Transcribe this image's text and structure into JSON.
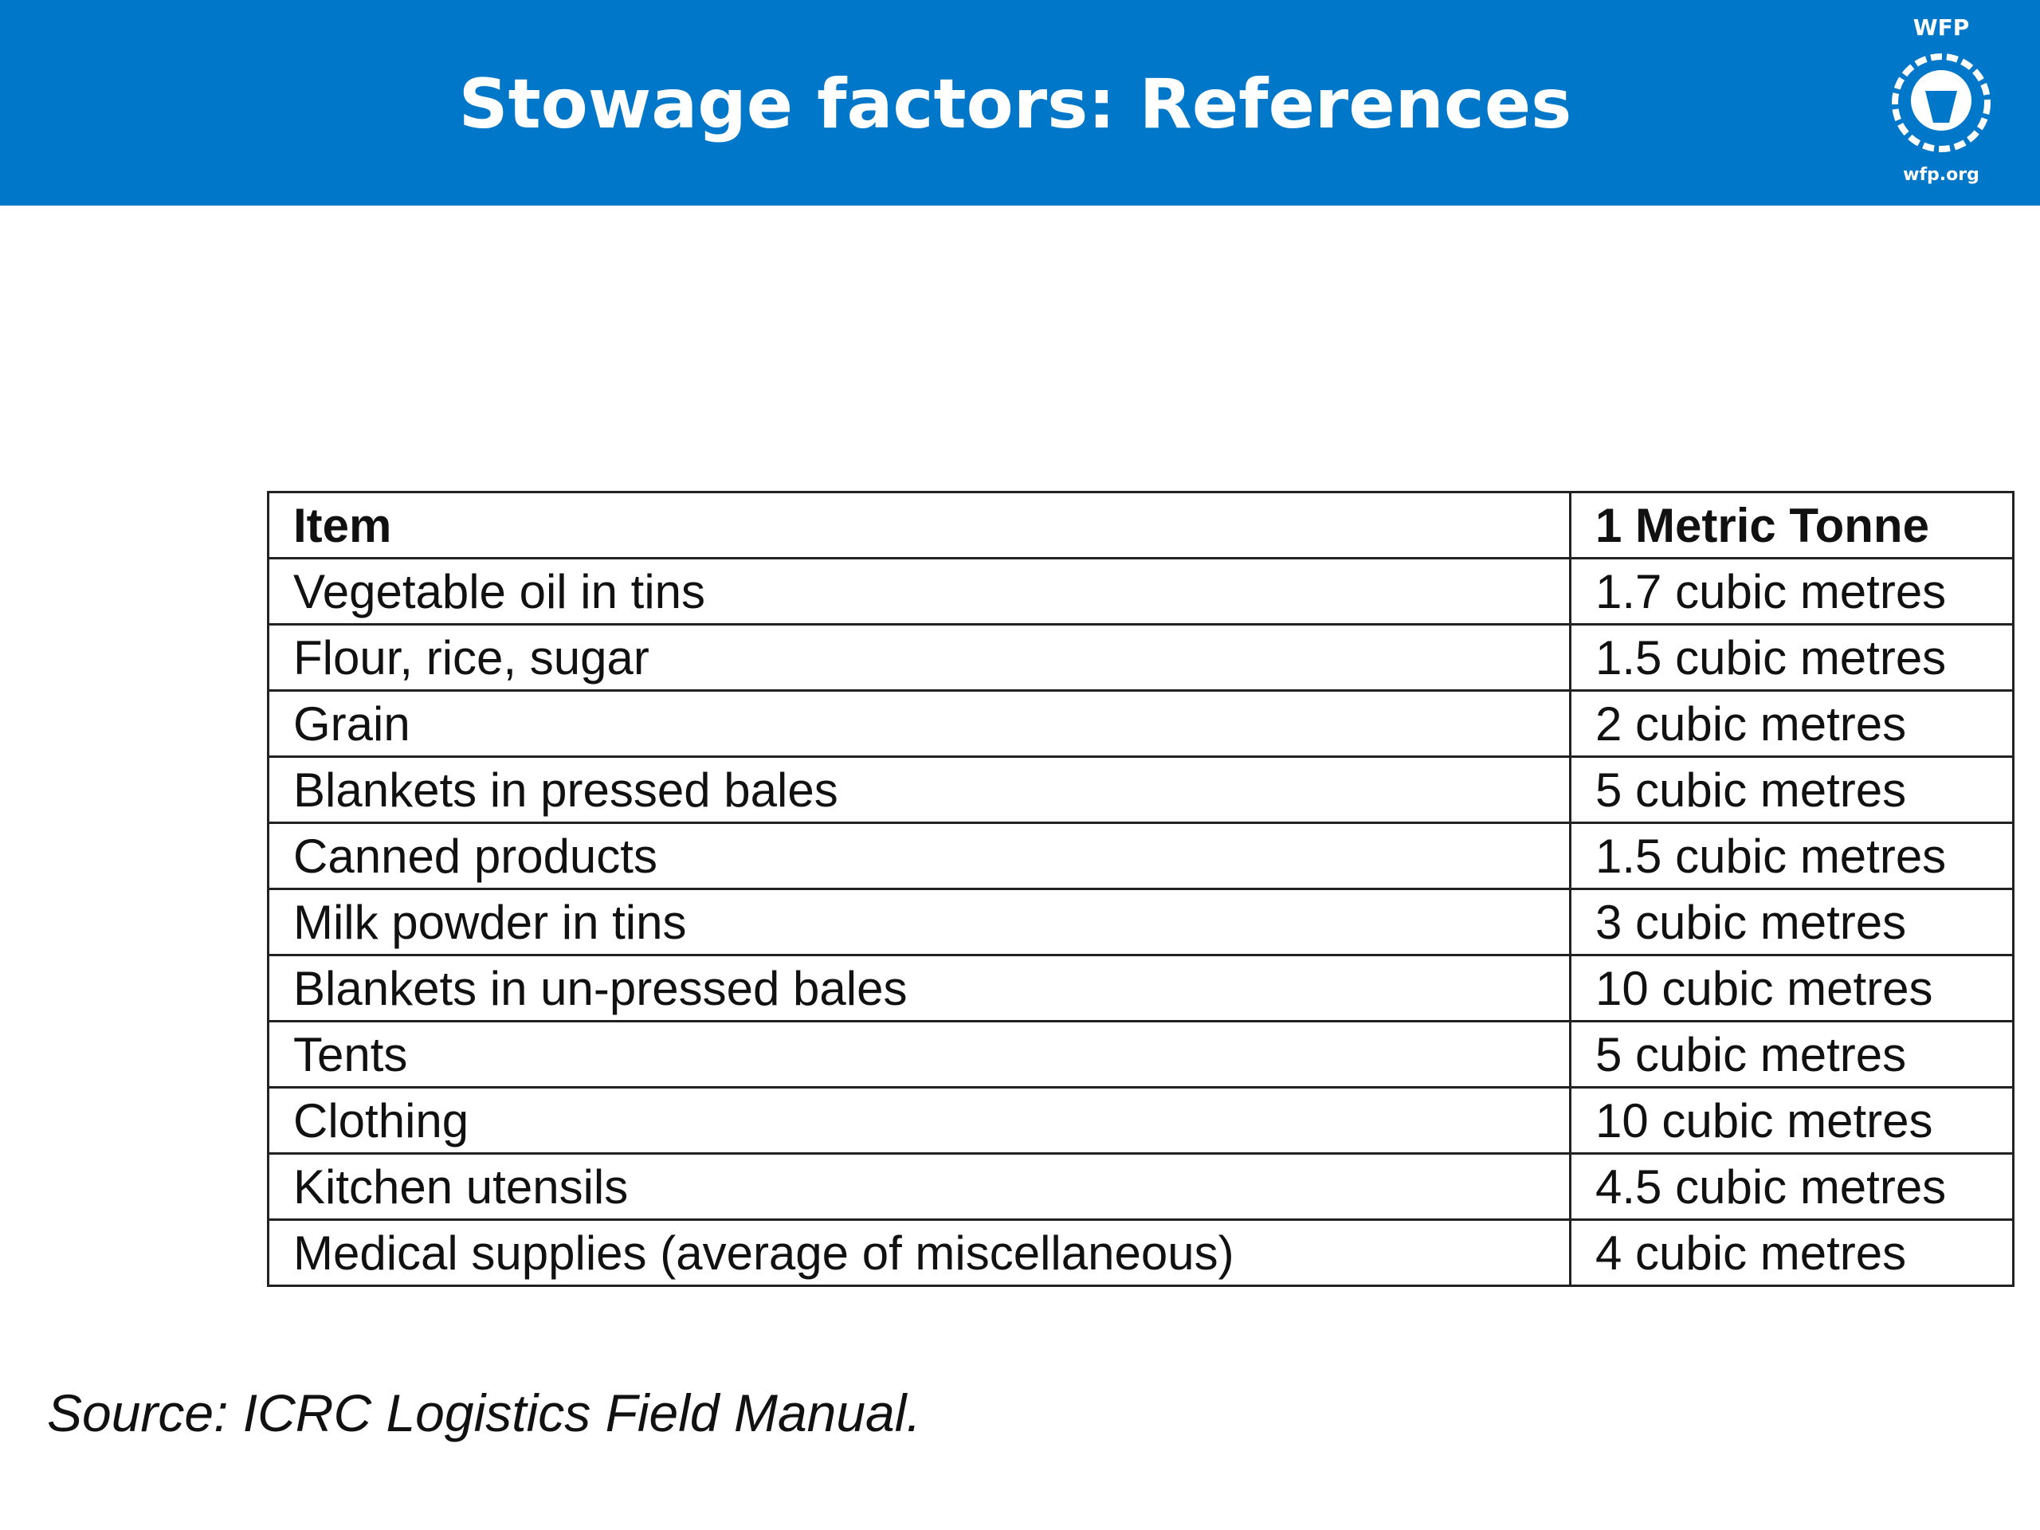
{
  "header": {
    "title": "Stowage factors: References",
    "logo_top": "WFP",
    "logo_bottom": "wfp.org"
  },
  "table": {
    "columns": [
      "Item",
      "1 Metric Tonne"
    ],
    "rows": [
      [
        "Vegetable oil in tins",
        "1.7 cubic metres"
      ],
      [
        "Flour, rice, sugar",
        "1.5 cubic metres"
      ],
      [
        "Grain",
        "2 cubic metres"
      ],
      [
        "Blankets in pressed bales",
        "5 cubic metres"
      ],
      [
        "Canned products",
        "1.5 cubic metres"
      ],
      [
        "Milk powder in tins",
        "3 cubic metres"
      ],
      [
        "Blankets in un-pressed bales",
        "10 cubic metres"
      ],
      [
        "Tents",
        "5 cubic metres"
      ],
      [
        "Clothing",
        "10 cubic metres"
      ],
      [
        "Kitchen utensils",
        "4.5 cubic metres"
      ],
      [
        "Medical supplies (average of miscellaneous)",
        "4 cubic metres"
      ]
    ]
  },
  "source": "Source: ICRC Logistics Field Manual."
}
